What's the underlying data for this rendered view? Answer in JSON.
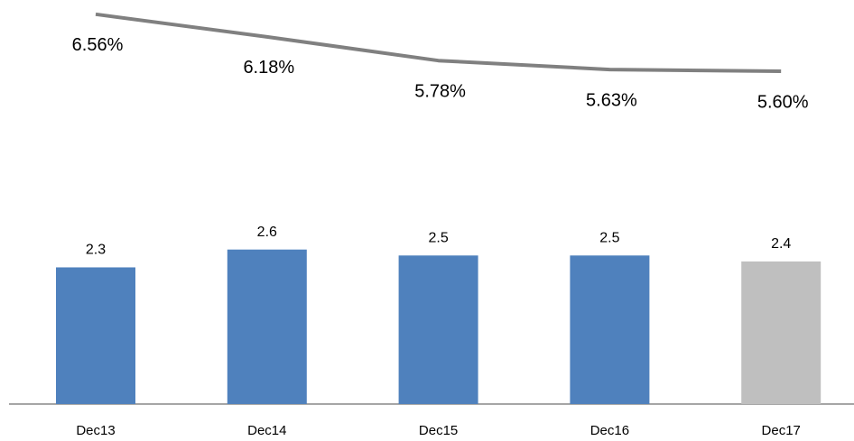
{
  "chart_data": {
    "type": "combo",
    "categories": [
      "Dec13",
      "Dec14",
      "Dec15",
      "Dec16",
      "Dec17"
    ],
    "ylim": [
      0,
      6.8
    ],
    "y2lim": [
      0,
      6.8
    ],
    "series": [
      {
        "type": "bar",
        "colors": [
          "#4f81bd",
          "#4f81bd",
          "#4f81bd",
          "#4f81bd",
          "#bfbfbf"
        ],
        "values": [
          2.3,
          2.6,
          2.5,
          2.5,
          2.4
        ]
      },
      {
        "type": "line",
        "axis": "y2",
        "color": "#808080",
        "values": [
          6.56,
          6.18,
          5.78,
          5.63,
          5.6
        ],
        "value_labels": [
          "6.56%",
          "6.18%",
          "5.78%",
          "5.63%",
          "5.60%"
        ]
      }
    ]
  }
}
